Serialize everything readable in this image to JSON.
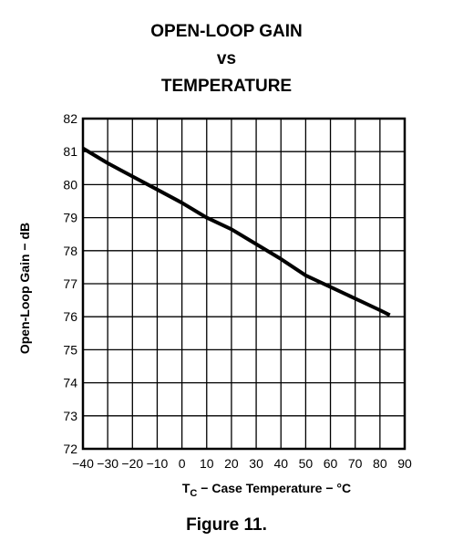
{
  "chart_data": {
    "type": "line",
    "title_lines": [
      "OPEN-LOOP GAIN",
      "vs",
      "TEMPERATURE"
    ],
    "xlabel": {
      "main": "T",
      "sub": "C",
      "rest": " − Case Temperature − °C"
    },
    "ylabel": "Open-Loop Gain − dB",
    "xlim": [
      -40,
      90
    ],
    "ylim": [
      72,
      82
    ],
    "x_ticks": [
      -40,
      -30,
      -20,
      -10,
      0,
      10,
      20,
      30,
      40,
      50,
      60,
      70,
      80,
      90
    ],
    "x_tick_labels": [
      "−40",
      "−30",
      "−20",
      "−10",
      "0",
      "10",
      "20",
      "30",
      "40",
      "50",
      "60",
      "70",
      "80",
      "90"
    ],
    "y_ticks": [
      72,
      73,
      74,
      75,
      76,
      77,
      78,
      79,
      80,
      81,
      82
    ],
    "y_tick_labels": [
      "72",
      "73",
      "74",
      "75",
      "76",
      "77",
      "78",
      "79",
      "80",
      "81",
      "82"
    ],
    "grid": true,
    "series": [
      {
        "x": [
          -40,
          -30,
          -20,
          -10,
          0,
          10,
          20,
          30,
          40,
          50,
          60,
          70,
          80,
          84
        ],
        "y": [
          81.1,
          80.65,
          80.25,
          79.85,
          79.45,
          79.0,
          78.65,
          78.2,
          77.75,
          77.25,
          76.9,
          76.55,
          76.2,
          76.05
        ]
      }
    ]
  },
  "caption": "Figure 11."
}
